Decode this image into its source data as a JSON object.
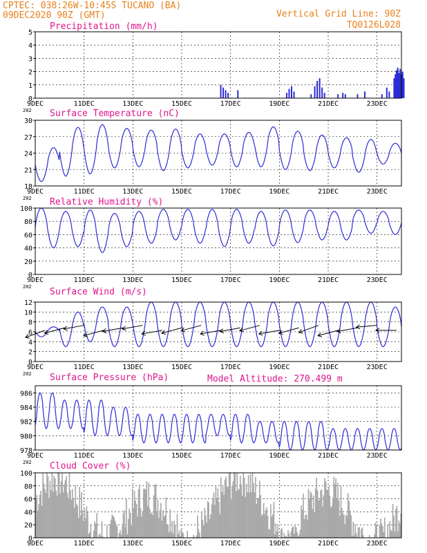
{
  "header": {
    "left_line1": "CPTEC:   038:26W-10:45S  TUCANO (BA)",
    "left_line2": "09DEC2020 90Z (GMT)",
    "right_line1": "Vertical Grid Line: 90Z",
    "right_line2": "TQ0126L028"
  },
  "x_ticks": [
    "9DEC",
    "11DEC",
    "13DEC",
    "15DEC",
    "17DEC",
    "19DEC",
    "21DEC",
    "23DEC"
  ],
  "x_ticks_all": [
    "9DEC",
    "11DEC",
    "13DEC",
    "15DEC",
    "17DEC",
    "19DEC",
    "21DEC",
    "23DEC"
  ],
  "x_tick_offsets_days": [
    0,
    2,
    4,
    6,
    8,
    10,
    12,
    14
  ],
  "x_range_days": 15,
  "sublabel": "202",
  "altitude_label": "Model Altitude: 270.499 m",
  "colors": {
    "line": "#2b2bd6",
    "header": "#e8801a",
    "title": "#e0148c",
    "cloud": "#a9a9a9",
    "arrow": "#000000"
  },
  "chart_data": [
    {
      "id": "precip",
      "type": "bar",
      "title": "Precipitation (mm/h)",
      "ylim": [
        0,
        5
      ],
      "yticks": [
        0,
        1,
        2,
        3,
        4,
        5
      ],
      "events": [
        {
          "day": 7.6,
          "value": 1.0
        },
        {
          "day": 7.7,
          "value": 0.8
        },
        {
          "day": 7.8,
          "value": 0.6
        },
        {
          "day": 7.9,
          "value": 0.4
        },
        {
          "day": 8.3,
          "value": 0.6
        },
        {
          "day": 10.3,
          "value": 0.4
        },
        {
          "day": 10.4,
          "value": 0.7
        },
        {
          "day": 10.5,
          "value": 0.9
        },
        {
          "day": 10.6,
          "value": 0.5
        },
        {
          "day": 11.3,
          "value": 0.3
        },
        {
          "day": 11.45,
          "value": 0.9
        },
        {
          "day": 11.55,
          "value": 1.3
        },
        {
          "day": 11.65,
          "value": 1.5
        },
        {
          "day": 11.75,
          "value": 0.8
        },
        {
          "day": 11.85,
          "value": 0.4
        },
        {
          "day": 12.4,
          "value": 0.3
        },
        {
          "day": 12.6,
          "value": 0.4
        },
        {
          "day": 12.7,
          "value": 0.3
        },
        {
          "day": 13.2,
          "value": 0.3
        },
        {
          "day": 13.5,
          "value": 0.5
        },
        {
          "day": 14.2,
          "value": 0.3
        },
        {
          "day": 14.4,
          "value": 0.8
        },
        {
          "day": 14.5,
          "value": 0.5
        },
        {
          "day": 14.7,
          "value": 1.5
        },
        {
          "day": 14.75,
          "value": 1.8
        },
        {
          "day": 14.8,
          "value": 2.1
        },
        {
          "day": 14.85,
          "value": 2.3
        },
        {
          "day": 14.9,
          "value": 1.9
        },
        {
          "day": 14.95,
          "value": 2.2
        },
        {
          "day": 15.0,
          "value": 1.8
        },
        {
          "day": 15.05,
          "value": 2.0
        },
        {
          "day": 15.1,
          "value": 1.5
        }
      ]
    },
    {
      "id": "temp",
      "type": "line",
      "title": "Surface Temperature (nC)",
      "ylim": [
        18,
        30
      ],
      "yticks": [
        18,
        21,
        24,
        27,
        30
      ],
      "period_days": 1,
      "phase_peak": 0.75,
      "daily_max": [
        25,
        28.7,
        29.2,
        28.5,
        28.2,
        28.4,
        27.5,
        27.5,
        27.8,
        28.8,
        28,
        27.3,
        26.8,
        26.5,
        25.8
      ],
      "daily_min": [
        18.8,
        19.8,
        20.2,
        21.3,
        21.5,
        20.8,
        21.3,
        21.8,
        21.5,
        21.5,
        21,
        20.8,
        21.3,
        20.5,
        22
      ]
    },
    {
      "id": "rh",
      "type": "line",
      "title": "Relative Humidity (%)",
      "ylim": [
        0,
        100
      ],
      "yticks": [
        0,
        20,
        40,
        60,
        80,
        100
      ],
      "period_days": 1,
      "phase_peak": 0.25,
      "daily_max": [
        100,
        95,
        97,
        92,
        95,
        98,
        98,
        98,
        98,
        95,
        97,
        97,
        95,
        97,
        95
      ],
      "daily_min": [
        40,
        42,
        33,
        42,
        47,
        52,
        47,
        42,
        47,
        43,
        48,
        52,
        52,
        62,
        60
      ]
    },
    {
      "id": "wind",
      "type": "line",
      "title": "Surface Wind (m/s)",
      "ylim": [
        0,
        12
      ],
      "yticks": [
        0,
        2,
        4,
        6,
        8,
        10,
        12
      ],
      "period_days": 1,
      "phase_peak": 0.75,
      "daily_max": [
        7,
        10,
        11,
        11,
        12,
        12,
        12,
        12,
        12,
        12,
        12,
        12,
        12,
        12,
        11
      ],
      "daily_min": [
        5,
        3,
        4,
        3,
        3,
        3,
        3,
        3,
        3,
        3,
        3,
        3,
        3,
        3,
        3
      ],
      "vectors_days": [
        0.4,
        1.2,
        2.0,
        2.8,
        3.6,
        4.4,
        5.2,
        6.0,
        6.8,
        7.6,
        8.4,
        9.2,
        10.0,
        10.8,
        11.6,
        12.4,
        13.2,
        14.0,
        14.8
      ],
      "vector_angles_deg": [
        200,
        195,
        190,
        195,
        190,
        190,
        190,
        195,
        195,
        190,
        190,
        195,
        190,
        195,
        200,
        195,
        190,
        185,
        180
      ]
    },
    {
      "id": "pres",
      "type": "line",
      "title": "Surface Pressure (hPa)",
      "ylim": [
        978,
        987
      ],
      "yticks": [
        978,
        980,
        982,
        984,
        986
      ],
      "period_days": 0.5,
      "phase_peak": 0.4,
      "daily_max": [
        986,
        985,
        985,
        984,
        983,
        983,
        983,
        983,
        983,
        982,
        982,
        982,
        981,
        981,
        981
      ],
      "daily_min": [
        981,
        981,
        980,
        980,
        979,
        979,
        979,
        980,
        979,
        979,
        978,
        978,
        978,
        978,
        978
      ]
    },
    {
      "id": "cloud",
      "type": "area",
      "title": "Cloud Cover (%)",
      "ylim": [
        0,
        100
      ],
      "yticks": [
        0,
        20,
        40,
        60,
        80,
        100
      ]
    }
  ]
}
